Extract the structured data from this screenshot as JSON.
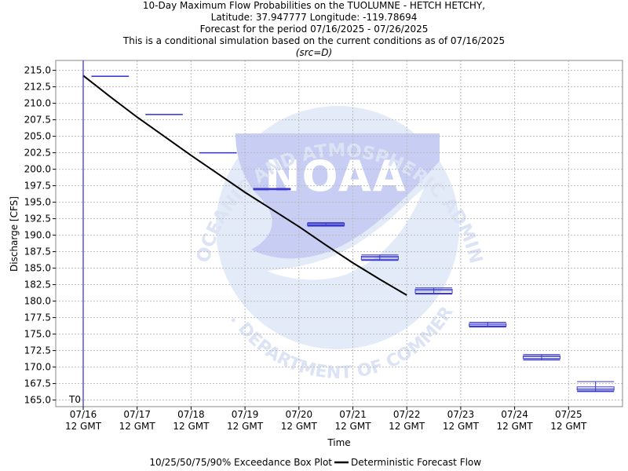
{
  "header": {
    "line1": "10-Day Maximum Flow Probabilities on the TUOLUMNE - HETCH HETCHY,",
    "line2": "Latitude: 37.947777 Longitude: -119.78694",
    "line3": "Forecast for the period 07/16/2025 - 07/26/2025",
    "line4": "This is a conditional simulation based on the current conditions as of 07/16/2025",
    "src": "(src=D)"
  },
  "watermark": {
    "center_text": "NOAA",
    "arc_text": "NATIONAL OCEANIC AND ATMOSPHERIC ADMINISTRATION",
    "bottom_text": "U.S. DEPARTMENT OF COMMERCE"
  },
  "chart_data": {
    "type": "box",
    "ylabel": "Discharge [CFS]",
    "xlabel": "Time",
    "t0_label": "T0",
    "ylim": [
      164,
      216.5
    ],
    "xlim": [
      0,
      10.05
    ],
    "y_ticks": [
      "165.0",
      "167.5",
      "170.0",
      "172.5",
      "175.0",
      "177.5",
      "180.0",
      "182.5",
      "185.0",
      "187.5",
      "190.0",
      "192.5",
      "195.0",
      "197.5",
      "200.0",
      "202.5",
      "205.0",
      "207.5",
      "210.0",
      "212.5",
      "215.0"
    ],
    "x_ticks": [
      {
        "x": 0,
        "date": "07/16",
        "time": "12 GMT"
      },
      {
        "x": 1,
        "date": "07/17",
        "time": "12 GMT"
      },
      {
        "x": 2,
        "date": "07/18",
        "time": "12 GMT"
      },
      {
        "x": 3,
        "date": "07/19",
        "time": "12 GMT"
      },
      {
        "x": 4,
        "date": "07/20",
        "time": "12 GMT"
      },
      {
        "x": 5,
        "date": "07/21",
        "time": "12 GMT"
      },
      {
        "x": 6,
        "date": "07/22",
        "time": "12 GMT"
      },
      {
        "x": 7,
        "date": "07/23",
        "time": "12 GMT"
      },
      {
        "x": 8,
        "date": "07/24",
        "time": "12 GMT"
      },
      {
        "x": 9,
        "date": "07/25",
        "time": "12 GMT"
      }
    ],
    "boxes": [
      {
        "day": "07/16-07/17",
        "p10": 214.1,
        "p25": 214.1,
        "p50": 214.1,
        "p75": 214.1,
        "p90": 214.1
      },
      {
        "day": "07/17-07/18",
        "p10": 208.3,
        "p25": 208.3,
        "p50": 208.3,
        "p75": 208.3,
        "p90": 208.3
      },
      {
        "day": "07/18-07/19",
        "p10": 202.5,
        "p25": 202.5,
        "p50": 202.5,
        "p75": 202.5,
        "p90": 202.5
      },
      {
        "day": "07/19-07/20",
        "p10": 196.9,
        "p25": 196.9,
        "p50": 197.0,
        "p75": 197.1,
        "p90": 197.1
      },
      {
        "day": "07/20-07/21",
        "p10": 191.4,
        "p25": 191.5,
        "p50": 191.6,
        "p75": 191.8,
        "p90": 191.9
      },
      {
        "day": "07/21-07/22",
        "p10": 186.2,
        "p25": 186.3,
        "p50": 186.6,
        "p75": 186.8,
        "p90": 187.0
      },
      {
        "day": "07/22-07/23",
        "p10": 181.1,
        "p25": 181.2,
        "p50": 181.6,
        "p75": 181.8,
        "p90": 182.0
      },
      {
        "day": "07/23-07/24",
        "p10": 176.1,
        "p25": 176.2,
        "p50": 176.4,
        "p75": 176.6,
        "p90": 176.8
      },
      {
        "day": "07/24-07/25",
        "p10": 171.1,
        "p25": 171.3,
        "p50": 171.6,
        "p75": 171.7,
        "p90": 171.9
      },
      {
        "day": "07/25-07/26",
        "p10": 166.3,
        "p25": 166.5,
        "p50": 166.7,
        "p75": 167.0,
        "p90": 167.8
      }
    ],
    "deterministic": {
      "x": [
        0,
        0.5,
        1,
        1.5,
        2,
        2.5,
        3,
        3.5,
        4,
        4.5,
        5,
        5.5,
        6
      ],
      "y": [
        214.2,
        211.0,
        207.9,
        205.0,
        202.1,
        199.3,
        196.5,
        193.9,
        191.3,
        188.5,
        185.8,
        183.3,
        180.9
      ]
    },
    "legend": {
      "position": "bottom-center",
      "box_label": "10/25/50/75/90% Exceedance Box Plot",
      "line_label": "Deterministic Forecast Flow"
    },
    "grid": true,
    "colors": {
      "box": "#3a3ad0",
      "line": "#000000",
      "t0_line": "#2b2bd6",
      "grid": "#bbbbbb",
      "watermark": "#dfe7f6"
    }
  }
}
